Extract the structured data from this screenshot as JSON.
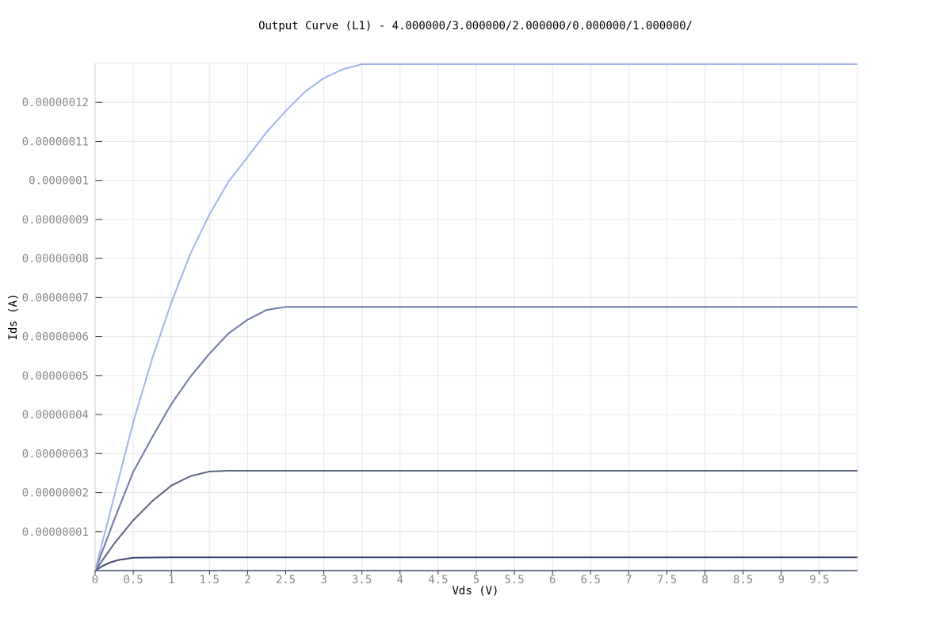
{
  "chart_data": {
    "type": "line",
    "title": "Output Curve (L1) - 4.000000/3.000000/2.000000/0.000000/1.000000/",
    "xlabel": "Vds (V)",
    "ylabel": "Ids (A)",
    "xlim": [
      0,
      10
    ],
    "ylim": [
      0,
      1.3e-07
    ],
    "grid": true,
    "x_ticks": [
      "0",
      "0.5",
      "1",
      "1.5",
      "2",
      "2.5",
      "3",
      "3.5",
      "4",
      "4.5",
      "5",
      "5.5",
      "6",
      "6.5",
      "7",
      "7.5",
      "8",
      "8.5",
      "9",
      "9.5"
    ],
    "y_ticks": [
      "0.00000001",
      "0.00000002",
      "0.00000003",
      "0.00000004",
      "0.00000005",
      "0.00000006",
      "0.00000007",
      "0.00000008",
      "0.00000009",
      "0.0000001",
      "0.00000011",
      "0.00000012"
    ],
    "series": [
      {
        "color": "#3e4a70",
        "x": [
          0,
          0.1,
          0.2,
          0.3,
          0.4,
          0.5,
          1,
          10
        ],
        "y": [
          0,
          1.2e-09,
          2.1e-09,
          2.7e-09,
          3e-09,
          3.3e-09,
          3.4e-09,
          3.4e-09
        ]
      },
      {
        "color": "#5a6580",
        "x": [
          0,
          0.25,
          0.5,
          0.75,
          1,
          1.25,
          1.5,
          1.75,
          10
        ],
        "y": [
          0,
          6.9e-09,
          1.29e-08,
          1.78e-08,
          2.18e-08,
          2.42e-08,
          2.54e-08,
          2.56e-08,
          2.56e-08
        ]
      },
      {
        "color": "#6b7aa8",
        "x": [
          0,
          0.25,
          0.5,
          0.75,
          1,
          1.25,
          1.5,
          1.75,
          2,
          2.25,
          2.5,
          10
        ],
        "y": [
          0,
          1.3e-08,
          2.53e-08,
          3.42e-08,
          4.27e-08,
          4.97e-08,
          5.56e-08,
          6.08e-08,
          6.43e-08,
          6.68e-08,
          6.76e-08,
          6.76e-08
        ]
      },
      {
        "color": "#9fb4ee",
        "x": [
          0,
          0.25,
          0.5,
          0.75,
          1,
          1.25,
          1.5,
          1.75,
          2,
          2.25,
          2.5,
          2.75,
          3,
          3.25,
          3.5,
          10
        ],
        "y": [
          0,
          1.9e-08,
          3.8e-08,
          5.44e-08,
          6.87e-08,
          8.12e-08,
          9.13e-08,
          9.97e-08,
          1.06e-07,
          1.124e-07,
          1.178e-07,
          1.227e-07,
          1.262e-07,
          1.285e-07,
          1.298e-07,
          1.298e-07
        ]
      }
    ]
  }
}
